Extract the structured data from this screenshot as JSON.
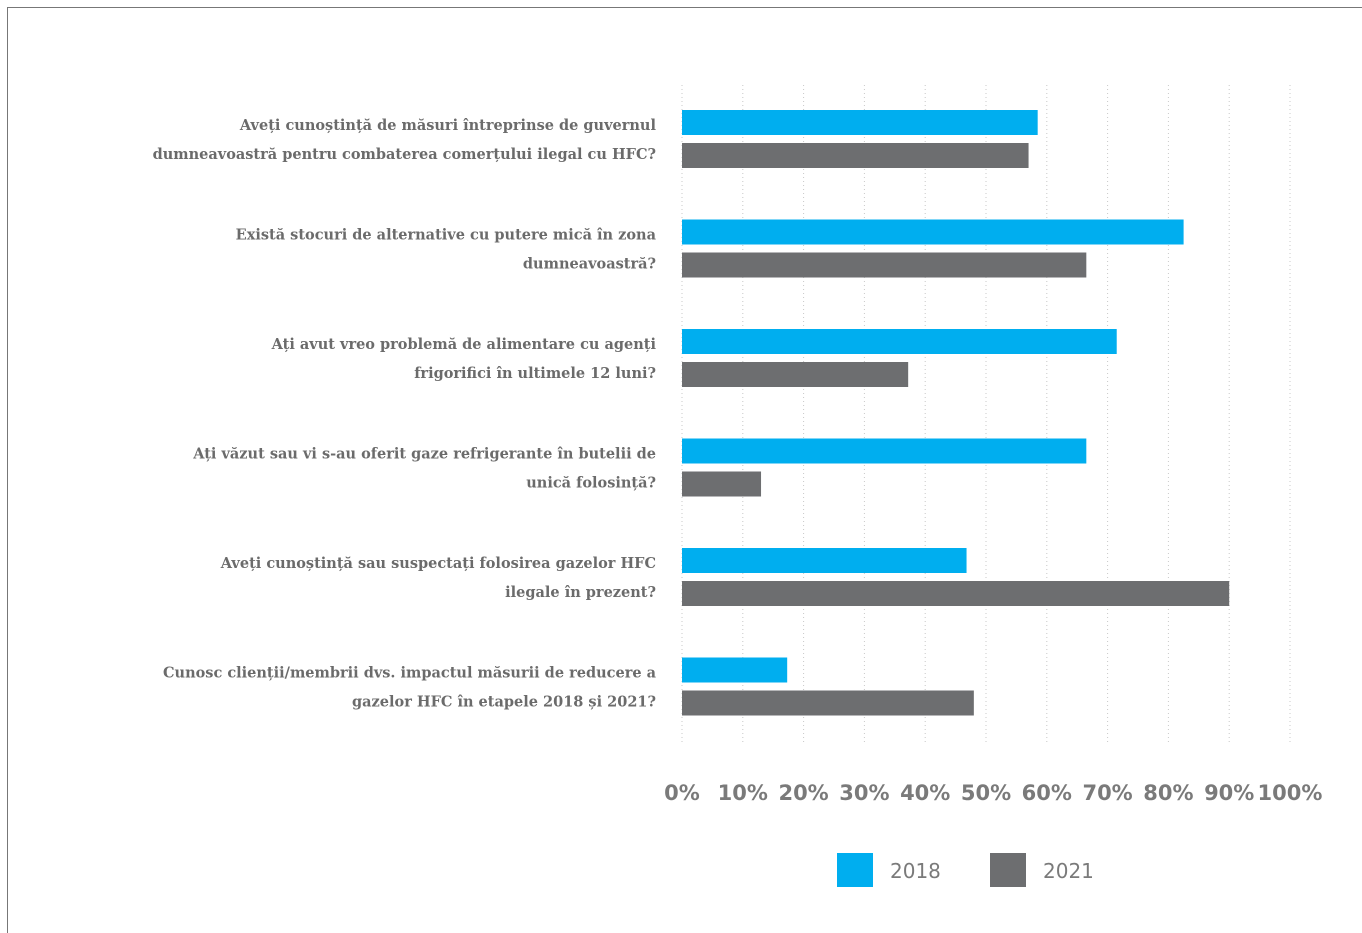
{
  "chart_data": {
    "type": "bar",
    "orientation": "horizontal",
    "categories": [
      [
        "Aveți cunoștință de măsuri întreprinse de guvernul",
        "dumneavoastră pentru combaterea comerțului ilegal cu HFC?"
      ],
      [
        "Există stocuri de alternative cu putere mică în zona",
        "dumneavoastră?"
      ],
      [
        "Ați avut vreo problemă de alimentare cu agenți",
        "frigorifici în ultimele 12 luni?"
      ],
      [
        "Ați văzut sau vi s-au oferit gaze refrigerante în butelii de",
        "unică folosință?"
      ],
      [
        "Aveți cunoștință sau suspectați folosirea gazelor HFC",
        "ilegale în prezent?"
      ],
      [
        "Cunosc clienții/membrii dvs. impactul măsurii de reducere a",
        "gazelor HFC în etapele 2018 și 2021?"
      ]
    ],
    "series": [
      {
        "name": "2018",
        "color": "#00aeef",
        "values": [
          58.5,
          82.5,
          71.5,
          66.5,
          46.8,
          17.3
        ]
      },
      {
        "name": "2021",
        "color": "#6d6e70",
        "values": [
          57,
          66.5,
          37.2,
          13,
          90,
          48
        ]
      }
    ],
    "xlim": [
      0,
      100
    ],
    "x_ticks": [
      "0%",
      "10%",
      "20%",
      "30%",
      "40%",
      "50%",
      "60%",
      "70%",
      "80%",
      "90%",
      "100%"
    ],
    "grid": "vertical-dotted",
    "legend_position": "bottom"
  }
}
